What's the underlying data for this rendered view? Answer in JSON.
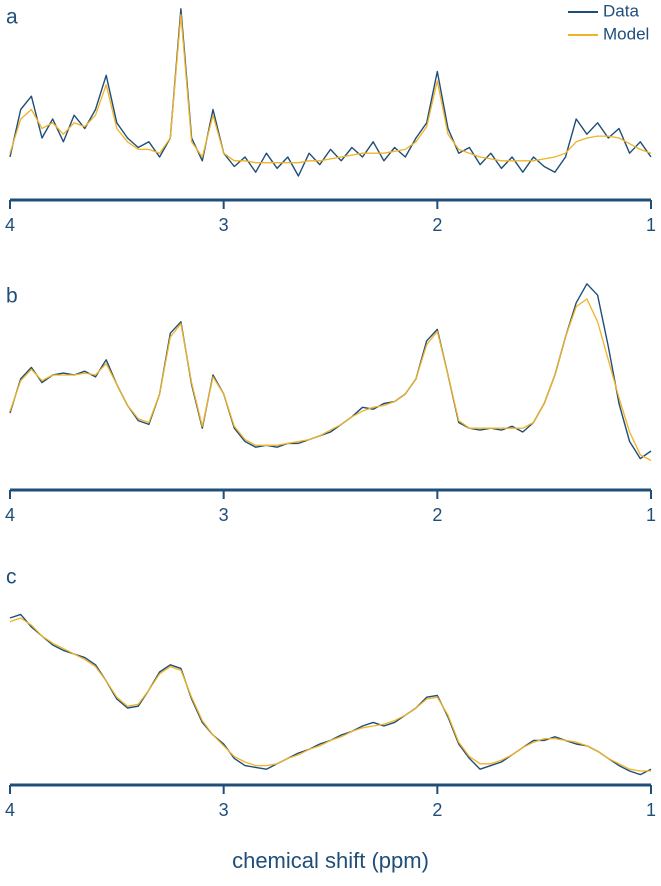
{
  "chart_data": [
    {
      "type": "line",
      "label": "a",
      "legend": "upper right",
      "x": [
        4.0,
        3.95,
        3.9,
        3.85,
        3.8,
        3.75,
        3.7,
        3.65,
        3.6,
        3.55,
        3.5,
        3.45,
        3.4,
        3.35,
        3.3,
        3.25,
        3.2,
        3.15,
        3.1,
        3.05,
        3.0,
        2.95,
        2.9,
        2.85,
        2.8,
        2.75,
        2.7,
        2.65,
        2.6,
        2.55,
        2.5,
        2.45,
        2.4,
        2.35,
        2.3,
        2.25,
        2.2,
        2.15,
        2.1,
        2.05,
        2.0,
        1.95,
        1.9,
        1.85,
        1.8,
        1.75,
        1.7,
        1.65,
        1.6,
        1.55,
        1.5,
        1.45,
        1.4,
        1.35,
        1.3,
        1.25,
        1.2,
        1.15,
        1.1,
        1.05,
        1.0
      ],
      "series": [
        {
          "name": "Data",
          "color": "#1f4e79",
          "values": [
            20,
            45,
            52,
            30,
            40,
            28,
            42,
            35,
            45,
            63,
            38,
            30,
            25,
            28,
            20,
            30,
            98,
            30,
            18,
            45,
            22,
            15,
            20,
            12,
            22,
            14,
            20,
            10,
            22,
            16,
            24,
            18,
            25,
            20,
            28,
            18,
            25,
            20,
            30,
            38,
            65,
            35,
            22,
            25,
            16,
            22,
            14,
            20,
            12,
            20,
            15,
            12,
            20,
            40,
            32,
            38,
            30,
            35,
            22,
            28,
            20
          ]
        },
        {
          "name": "Model",
          "color": "#f0b323",
          "values": [
            22,
            40,
            45,
            35,
            38,
            32,
            38,
            36,
            42,
            58,
            35,
            28,
            24,
            24,
            22,
            30,
            95,
            28,
            20,
            42,
            22,
            18,
            18,
            17,
            17,
            17,
            17,
            17,
            18,
            18,
            19,
            20,
            21,
            22,
            22,
            22,
            23,
            24,
            28,
            36,
            60,
            32,
            24,
            22,
            20,
            19,
            18,
            18,
            18,
            18,
            19,
            20,
            22,
            28,
            30,
            31,
            31,
            30,
            27,
            24,
            22
          ]
        }
      ],
      "xlim": [
        4,
        1
      ],
      "xticks": [
        4,
        3,
        2,
        1
      ],
      "ylim": [
        0,
        100
      ]
    },
    {
      "type": "line",
      "label": "b",
      "x": [
        4.0,
        3.95,
        3.9,
        3.85,
        3.8,
        3.75,
        3.7,
        3.65,
        3.6,
        3.55,
        3.5,
        3.45,
        3.4,
        3.35,
        3.3,
        3.25,
        3.2,
        3.15,
        3.1,
        3.05,
        3.0,
        2.95,
        2.9,
        2.85,
        2.8,
        2.75,
        2.7,
        2.65,
        2.6,
        2.55,
        2.5,
        2.45,
        2.4,
        2.35,
        2.3,
        2.25,
        2.2,
        2.15,
        2.1,
        2.05,
        2.0,
        1.95,
        1.9,
        1.85,
        1.8,
        1.75,
        1.7,
        1.65,
        1.6,
        1.55,
        1.5,
        1.45,
        1.4,
        1.35,
        1.3,
        1.25,
        1.2,
        1.15,
        1.1,
        1.05,
        1.0
      ],
      "series": [
        {
          "color": "#1f4e79",
          "values": [
            30,
            48,
            54,
            46,
            50,
            51,
            50,
            52,
            49,
            58,
            45,
            34,
            26,
            24,
            40,
            72,
            78,
            45,
            22,
            50,
            40,
            22,
            15,
            12,
            13,
            12,
            14,
            14,
            16,
            18,
            20,
            24,
            28,
            33,
            32,
            35,
            36,
            40,
            48,
            68,
            74,
            50,
            25,
            22,
            21,
            22,
            21,
            23,
            20,
            25,
            35,
            50,
            70,
            88,
            98,
            92,
            65,
            35,
            15,
            6,
            10
          ]
        },
        {
          "color": "#f0b323",
          "values": [
            31,
            47,
            53,
            47,
            50,
            50,
            50,
            51,
            50,
            56,
            45,
            34,
            27,
            25,
            40,
            70,
            77,
            46,
            23,
            49,
            40,
            23,
            16,
            13,
            13,
            13,
            14,
            15,
            16,
            18,
            21,
            24,
            28,
            31,
            33,
            34,
            36,
            40,
            48,
            66,
            73,
            50,
            26,
            22,
            22,
            22,
            22,
            22,
            22,
            25,
            35,
            50,
            70,
            86,
            90,
            78,
            58,
            38,
            20,
            8,
            5
          ]
        }
      ],
      "xlim": [
        4,
        1
      ],
      "xticks": [
        4,
        3,
        2,
        1
      ],
      "ylim": [
        0,
        100
      ]
    },
    {
      "type": "line",
      "label": "c",
      "xlabel": "chemical shift (ppm)",
      "x": [
        4.0,
        3.95,
        3.9,
        3.85,
        3.8,
        3.75,
        3.7,
        3.65,
        3.6,
        3.55,
        3.5,
        3.45,
        3.4,
        3.35,
        3.3,
        3.25,
        3.2,
        3.15,
        3.1,
        3.05,
        3.0,
        2.95,
        2.9,
        2.85,
        2.8,
        2.75,
        2.7,
        2.65,
        2.6,
        2.55,
        2.5,
        2.45,
        2.4,
        2.35,
        2.3,
        2.25,
        2.2,
        2.15,
        2.1,
        2.05,
        2.0,
        1.95,
        1.9,
        1.85,
        1.8,
        1.75,
        1.7,
        1.65,
        1.6,
        1.55,
        1.5,
        1.45,
        1.4,
        1.35,
        1.3,
        1.25,
        1.2,
        1.15,
        1.1,
        1.05,
        1.0
      ],
      "series": [
        {
          "color": "#1f4e79",
          "values": [
            90,
            92,
            85,
            80,
            75,
            72,
            70,
            68,
            64,
            55,
            45,
            40,
            41,
            50,
            60,
            64,
            62,
            45,
            32,
            25,
            20,
            12,
            8,
            7,
            6,
            9,
            12,
            15,
            17,
            20,
            22,
            25,
            27,
            30,
            32,
            30,
            32,
            36,
            40,
            46,
            47,
            35,
            20,
            12,
            6,
            8,
            10,
            14,
            18,
            22,
            22,
            24,
            22,
            20,
            19,
            16,
            12,
            8,
            5,
            3,
            6
          ]
        },
        {
          "color": "#f0b323",
          "values": [
            88,
            90,
            86,
            80,
            76,
            73,
            70,
            67,
            63,
            55,
            46,
            41,
            42,
            50,
            59,
            63,
            61,
            46,
            33,
            25,
            19,
            13,
            10,
            8,
            8,
            9,
            12,
            14,
            17,
            19,
            22,
            24,
            27,
            29,
            30,
            31,
            33,
            36,
            40,
            45,
            46,
            36,
            21,
            13,
            9,
            9,
            11,
            14,
            18,
            21,
            23,
            23,
            22,
            21,
            19,
            16,
            12,
            9,
            6,
            5,
            5
          ]
        }
      ],
      "xlim": [
        4,
        1
      ],
      "xticks": [
        4,
        3,
        2,
        1
      ],
      "ylim": [
        0,
        100
      ]
    }
  ]
}
